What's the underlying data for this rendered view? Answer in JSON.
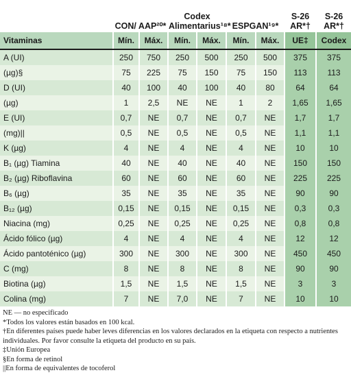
{
  "header": {
    "groups": [
      "CON/ AAP²⁰*",
      "Codex Alimentarius¹⁸*",
      "ESPGAN¹⁹*",
      "S-26 AR*†",
      "S-26 AR*†"
    ],
    "columns": [
      "Vitaminas",
      "Mín.",
      "Máx.",
      "Mín.",
      "Máx.",
      "Mín.",
      "Máx.",
      "UE‡",
      "Codex"
    ]
  },
  "table": {
    "rows": [
      [
        "A (UI)",
        "250",
        "750",
        "250",
        "500",
        "250",
        "500",
        "375",
        "375"
      ],
      [
        "(µg)§",
        "75",
        "225",
        "75",
        "150",
        "75",
        "150",
        "113",
        "113"
      ],
      [
        "D (UI)",
        "40",
        "100",
        "40",
        "100",
        "40",
        "80",
        "64",
        "64"
      ],
      [
        "(µg)",
        "1",
        "2,5",
        "NE",
        "NE",
        "1",
        "2",
        "1,65",
        "1,65"
      ],
      [
        "E (UI)",
        "0,7",
        "NE",
        "0,7",
        "NE",
        "0,7",
        "NE",
        "1,7",
        "1,7"
      ],
      [
        "(mg)||",
        "0,5",
        "NE",
        "0,5",
        "NE",
        "0,5",
        "NE",
        "1,1",
        "1,1"
      ],
      [
        "K (µg)",
        "4",
        "NE",
        "4",
        "NE",
        "4",
        "NE",
        "10",
        "10"
      ],
      [
        "B₁ (µg) Tiamina",
        "40",
        "NE",
        "40",
        "NE",
        "40",
        "NE",
        "150",
        "150"
      ],
      [
        "B₂ (µg) Riboflavina",
        "60",
        "NE",
        "60",
        "NE",
        "60",
        "NE",
        "225",
        "225"
      ],
      [
        "B₆ (µg)",
        "35",
        "NE",
        "35",
        "NE",
        "35",
        "NE",
        "90",
        "90"
      ],
      [
        "B₁₂ (µg)",
        "0,15",
        "NE",
        "0,15",
        "NE",
        "0,15",
        "NE",
        "0,3",
        "0,3"
      ],
      [
        "Niacina (mg)",
        "0,25",
        "NE",
        "0,25",
        "NE",
        "0,25",
        "NE",
        "0,8",
        "0,8"
      ],
      [
        "Ácido fólico (µg)",
        "4",
        "NE",
        "4",
        "NE",
        "4",
        "NE",
        "12",
        "12"
      ],
      [
        "Ácido pantoténico (µg)",
        "300",
        "NE",
        "300",
        "NE",
        "300",
        "NE",
        "450",
        "450"
      ],
      [
        "C (mg)",
        "8",
        "NE",
        "8",
        "NE",
        "8",
        "NE",
        "90",
        "90"
      ],
      [
        "Biotina (µg)",
        "1,5",
        "NE",
        "1,5",
        "NE",
        "1,5",
        "NE",
        "3",
        "3"
      ],
      [
        "Colina (mg)",
        "7",
        "NE",
        "7,0",
        "NE",
        "7",
        "NE",
        "10",
        "10"
      ]
    ]
  },
  "notes": [
    "NE — no especificado",
    "*Todos los valores están basados en 100 kcal.",
    "†En diferentes países puede haber leves diferencias en los valores declarados en la etiqueta con respecto a nutrientes individuales. Por favor consulte la etiqueta del producto en su país.",
    "‡Unión Europea",
    "§En forma de retinol",
    "||En forma de equivalentes de tocoferol"
  ]
}
